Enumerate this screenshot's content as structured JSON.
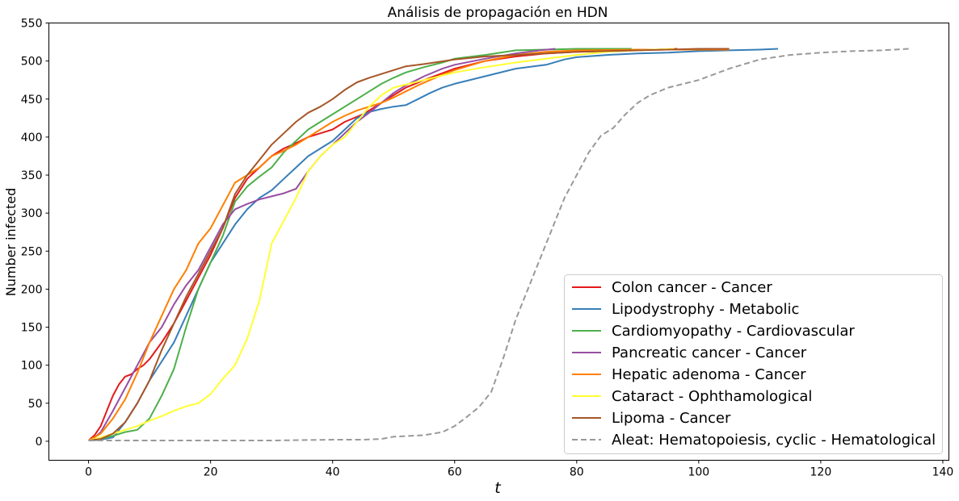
{
  "chart_data": {
    "type": "line",
    "title": "Análisis de propagación en HDN",
    "xlabel": "t",
    "ylabel": "Number infected",
    "xlim": [
      -6.5,
      141
    ],
    "ylim": [
      -25,
      550
    ],
    "xticks": [
      0,
      20,
      40,
      60,
      80,
      100,
      120,
      140
    ],
    "yticks": [
      0,
      50,
      100,
      150,
      200,
      250,
      300,
      350,
      400,
      450,
      500,
      550
    ],
    "grid": false,
    "legend_position": "lower-right",
    "series": [
      {
        "name": "Colon cancer - Cancer",
        "color": "#e41a1c",
        "dashed": false,
        "points": [
          [
            0,
            1
          ],
          [
            1,
            8
          ],
          [
            2,
            20
          ],
          [
            3,
            40
          ],
          [
            4,
            60
          ],
          [
            5,
            75
          ],
          [
            6,
            85
          ],
          [
            7,
            88
          ],
          [
            8,
            95
          ],
          [
            9,
            100
          ],
          [
            10,
            108
          ],
          [
            12,
            130
          ],
          [
            14,
            155
          ],
          [
            16,
            185
          ],
          [
            18,
            215
          ],
          [
            20,
            245
          ],
          [
            22,
            280
          ],
          [
            24,
            320
          ],
          [
            26,
            345
          ],
          [
            28,
            360
          ],
          [
            30,
            375
          ],
          [
            32,
            385
          ],
          [
            34,
            392
          ],
          [
            36,
            400
          ],
          [
            38,
            405
          ],
          [
            40,
            410
          ],
          [
            42,
            420
          ],
          [
            45,
            430
          ],
          [
            48,
            445
          ],
          [
            50,
            455
          ],
          [
            52,
            465
          ],
          [
            55,
            475
          ],
          [
            60,
            490
          ],
          [
            65,
            500
          ],
          [
            70,
            506
          ],
          [
            75,
            510
          ],
          [
            80,
            512
          ],
          [
            85,
            513
          ],
          [
            90,
            514
          ],
          [
            96.5,
            516
          ]
        ]
      },
      {
        "name": "Lipodystrophy - Metabolic",
        "color": "#377eb8",
        "dashed": false,
        "points": [
          [
            0,
            1
          ],
          [
            2,
            2
          ],
          [
            4,
            5
          ],
          [
            6,
            25
          ],
          [
            8,
            50
          ],
          [
            10,
            80
          ],
          [
            12,
            105
          ],
          [
            14,
            130
          ],
          [
            16,
            165
          ],
          [
            18,
            200
          ],
          [
            20,
            235
          ],
          [
            22,
            260
          ],
          [
            24,
            285
          ],
          [
            26,
            305
          ],
          [
            28,
            320
          ],
          [
            30,
            330
          ],
          [
            32,
            345
          ],
          [
            34,
            360
          ],
          [
            36,
            375
          ],
          [
            38,
            385
          ],
          [
            40,
            395
          ],
          [
            42,
            410
          ],
          [
            44,
            425
          ],
          [
            46,
            433
          ],
          [
            48,
            437
          ],
          [
            50,
            440
          ],
          [
            52,
            442
          ],
          [
            54,
            450
          ],
          [
            56,
            458
          ],
          [
            58,
            465
          ],
          [
            60,
            470
          ],
          [
            65,
            480
          ],
          [
            70,
            490
          ],
          [
            75,
            495
          ],
          [
            78,
            502
          ],
          [
            80,
            505
          ],
          [
            85,
            508
          ],
          [
            90,
            510
          ],
          [
            95,
            511
          ],
          [
            100,
            513
          ],
          [
            105,
            514
          ],
          [
            110,
            515
          ],
          [
            113,
            516
          ]
        ]
      },
      {
        "name": "Cardiomyopathy - Cardiovascular",
        "color": "#4daf4a",
        "dashed": false,
        "points": [
          [
            0,
            1
          ],
          [
            2,
            3
          ],
          [
            4,
            7
          ],
          [
            6,
            12
          ],
          [
            8,
            15
          ],
          [
            10,
            30
          ],
          [
            12,
            60
          ],
          [
            14,
            95
          ],
          [
            16,
            150
          ],
          [
            18,
            200
          ],
          [
            20,
            235
          ],
          [
            22,
            270
          ],
          [
            24,
            315
          ],
          [
            26,
            335
          ],
          [
            28,
            348
          ],
          [
            30,
            360
          ],
          [
            32,
            380
          ],
          [
            34,
            395
          ],
          [
            36,
            410
          ],
          [
            38,
            420
          ],
          [
            40,
            430
          ],
          [
            42,
            440
          ],
          [
            44,
            450
          ],
          [
            46,
            460
          ],
          [
            48,
            470
          ],
          [
            50,
            478
          ],
          [
            52,
            485
          ],
          [
            55,
            492
          ],
          [
            58,
            498
          ],
          [
            60,
            503
          ],
          [
            65,
            508
          ],
          [
            70,
            514
          ],
          [
            75,
            515
          ],
          [
            80,
            516
          ],
          [
            89,
            516
          ]
        ]
      },
      {
        "name": "Pancreatic cancer - Cancer",
        "color": "#984ea3",
        "dashed": false,
        "points": [
          [
            0,
            1
          ],
          [
            1,
            5
          ],
          [
            2,
            12
          ],
          [
            4,
            40
          ],
          [
            6,
            70
          ],
          [
            8,
            100
          ],
          [
            10,
            130
          ],
          [
            12,
            150
          ],
          [
            14,
            180
          ],
          [
            16,
            205
          ],
          [
            18,
            225
          ],
          [
            20,
            255
          ],
          [
            22,
            285
          ],
          [
            24,
            305
          ],
          [
            26,
            312
          ],
          [
            28,
            318
          ],
          [
            30,
            322
          ],
          [
            32,
            326
          ],
          [
            34,
            332
          ],
          [
            36,
            355
          ],
          [
            38,
            375
          ],
          [
            40,
            390
          ],
          [
            42,
            405
          ],
          [
            44,
            420
          ],
          [
            46,
            432
          ],
          [
            48,
            445
          ],
          [
            50,
            458
          ],
          [
            52,
            468
          ],
          [
            55,
            480
          ],
          [
            58,
            490
          ],
          [
            60,
            495
          ],
          [
            65,
            503
          ],
          [
            70,
            510
          ],
          [
            74,
            514
          ],
          [
            76.5,
            516
          ]
        ]
      },
      {
        "name": "Hepatic adenoma - Cancer",
        "color": "#ff7f00",
        "dashed": false,
        "points": [
          [
            0,
            1
          ],
          [
            2,
            10
          ],
          [
            4,
            30
          ],
          [
            6,
            55
          ],
          [
            8,
            90
          ],
          [
            10,
            130
          ],
          [
            12,
            165
          ],
          [
            14,
            200
          ],
          [
            16,
            225
          ],
          [
            18,
            260
          ],
          [
            20,
            280
          ],
          [
            22,
            310
          ],
          [
            24,
            340
          ],
          [
            26,
            350
          ],
          [
            28,
            360
          ],
          [
            30,
            375
          ],
          [
            32,
            382
          ],
          [
            34,
            390
          ],
          [
            36,
            400
          ],
          [
            38,
            410
          ],
          [
            40,
            420
          ],
          [
            42,
            428
          ],
          [
            44,
            435
          ],
          [
            46,
            440
          ],
          [
            48,
            445
          ],
          [
            50,
            452
          ],
          [
            52,
            460
          ],
          [
            54,
            468
          ],
          [
            56,
            475
          ],
          [
            58,
            482
          ],
          [
            60,
            488
          ],
          [
            65,
            500
          ],
          [
            70,
            508
          ],
          [
            75,
            512
          ],
          [
            80,
            514
          ],
          [
            90,
            515
          ],
          [
            105,
            515
          ]
        ]
      },
      {
        "name": "Cataract - Ophthamological",
        "color": "#ffff33",
        "dashed": false,
        "points": [
          [
            0,
            1
          ],
          [
            2,
            5
          ],
          [
            4,
            10
          ],
          [
            6,
            15
          ],
          [
            8,
            20
          ],
          [
            10,
            27
          ],
          [
            12,
            33
          ],
          [
            14,
            40
          ],
          [
            16,
            46
          ],
          [
            18,
            50
          ],
          [
            20,
            62
          ],
          [
            22,
            82
          ],
          [
            24,
            100
          ],
          [
            26,
            135
          ],
          [
            28,
            185
          ],
          [
            30,
            260
          ],
          [
            32,
            290
          ],
          [
            34,
            320
          ],
          [
            36,
            355
          ],
          [
            38,
            375
          ],
          [
            40,
            390
          ],
          [
            42,
            400
          ],
          [
            44,
            420
          ],
          [
            46,
            440
          ],
          [
            48,
            455
          ],
          [
            50,
            465
          ],
          [
            55,
            475
          ],
          [
            60,
            485
          ],
          [
            65,
            492
          ],
          [
            70,
            498
          ],
          [
            75,
            503
          ],
          [
            80,
            508
          ],
          [
            85,
            512
          ],
          [
            90,
            514
          ],
          [
            96,
            516
          ]
        ]
      },
      {
        "name": "Lipoma - Cancer",
        "color": "#a65628",
        "dashed": false,
        "points": [
          [
            0,
            1
          ],
          [
            2,
            3
          ],
          [
            4,
            10
          ],
          [
            6,
            25
          ],
          [
            8,
            50
          ],
          [
            10,
            80
          ],
          [
            12,
            120
          ],
          [
            14,
            155
          ],
          [
            16,
            190
          ],
          [
            18,
            220
          ],
          [
            20,
            250
          ],
          [
            22,
            280
          ],
          [
            24,
            325
          ],
          [
            26,
            350
          ],
          [
            28,
            370
          ],
          [
            30,
            390
          ],
          [
            32,
            405
          ],
          [
            34,
            420
          ],
          [
            36,
            432
          ],
          [
            38,
            440
          ],
          [
            40,
            450
          ],
          [
            42,
            462
          ],
          [
            44,
            472
          ],
          [
            46,
            478
          ],
          [
            48,
            483
          ],
          [
            50,
            488
          ],
          [
            52,
            493
          ],
          [
            55,
            496
          ],
          [
            60,
            502
          ],
          [
            65,
            506
          ],
          [
            70,
            508
          ],
          [
            75,
            510
          ],
          [
            80,
            512
          ],
          [
            90,
            514
          ],
          [
            95,
            515
          ],
          [
            100,
            516
          ],
          [
            105,
            516
          ]
        ]
      },
      {
        "name": "Aleat: Hematopoiesis, cyclic - Hematological",
        "color": "#999999",
        "dashed": true,
        "points": [
          [
            0,
            1
          ],
          [
            10,
            1
          ],
          [
            20,
            1
          ],
          [
            30,
            1
          ],
          [
            40,
            2
          ],
          [
            45,
            2
          ],
          [
            48,
            3
          ],
          [
            50,
            6
          ],
          [
            55,
            8
          ],
          [
            58,
            12
          ],
          [
            60,
            20
          ],
          [
            62,
            32
          ],
          [
            64,
            45
          ],
          [
            66,
            65
          ],
          [
            68,
            110
          ],
          [
            70,
            160
          ],
          [
            72,
            200
          ],
          [
            74,
            240
          ],
          [
            76,
            280
          ],
          [
            78,
            320
          ],
          [
            80,
            350
          ],
          [
            82,
            380
          ],
          [
            84,
            402
          ],
          [
            86,
            412
          ],
          [
            88,
            430
          ],
          [
            90,
            445
          ],
          [
            92,
            455
          ],
          [
            95,
            465
          ],
          [
            100,
            475
          ],
          [
            105,
            490
          ],
          [
            110,
            502
          ],
          [
            115,
            508
          ],
          [
            120,
            511
          ],
          [
            125,
            513
          ],
          [
            130,
            514
          ],
          [
            134.5,
            516
          ]
        ]
      }
    ]
  }
}
